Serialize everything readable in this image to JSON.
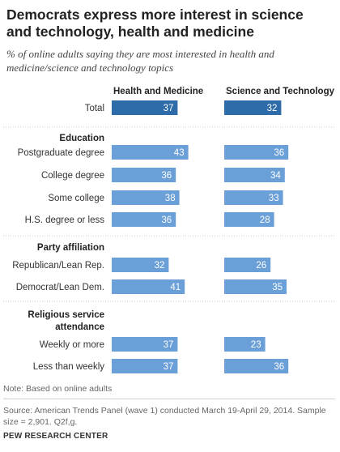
{
  "title": "Democrats express more interest in science and technology, health and medicine",
  "subtitle": "% of online adults saying they are most interested in health and medicine/science and technology  topics",
  "note": "Note: Based on online adults",
  "source": "Source: American Trends Panel (wave 1) conducted March 19-April 29, 2014. Sample size = 2,901. Q2f,g.",
  "organization": "PEW RESEARCH CENTER",
  "colors": {
    "total_bar": "#2d6ca8",
    "bar": "#6a9fd8",
    "separator": "#c8c8c8"
  },
  "chart_data": {
    "type": "bar",
    "orientation": "horizontal",
    "grid": false,
    "series": [
      {
        "name": "Health and Medicine",
        "values": [
          37,
          43,
          36,
          38,
          36,
          32,
          41,
          37,
          37
        ]
      },
      {
        "name": "Science and Technology",
        "values": [
          32,
          36,
          34,
          33,
          28,
          26,
          35,
          23,
          36
        ]
      }
    ],
    "groups": [
      {
        "heading": "",
        "categories": [
          "Total"
        ]
      },
      {
        "heading": "Education",
        "categories": [
          "Postgraduate degree",
          "College degree",
          "Some college",
          "H.S. degree or less"
        ]
      },
      {
        "heading": "Party affiliation",
        "categories": [
          "Republican/Lean Rep.",
          "Democrat/Lean Dem."
        ]
      },
      {
        "heading": "Religious service attendance",
        "categories": [
          "Weekly or more",
          "Less than weekly"
        ]
      }
    ],
    "categories": [
      "Total",
      "Postgraduate degree",
      "College degree",
      "Some college",
      "H.S. degree or less",
      "Republican/Lean Rep.",
      "Democrat/Lean Dem.",
      "Weekly or more",
      "Less than weekly"
    ]
  }
}
